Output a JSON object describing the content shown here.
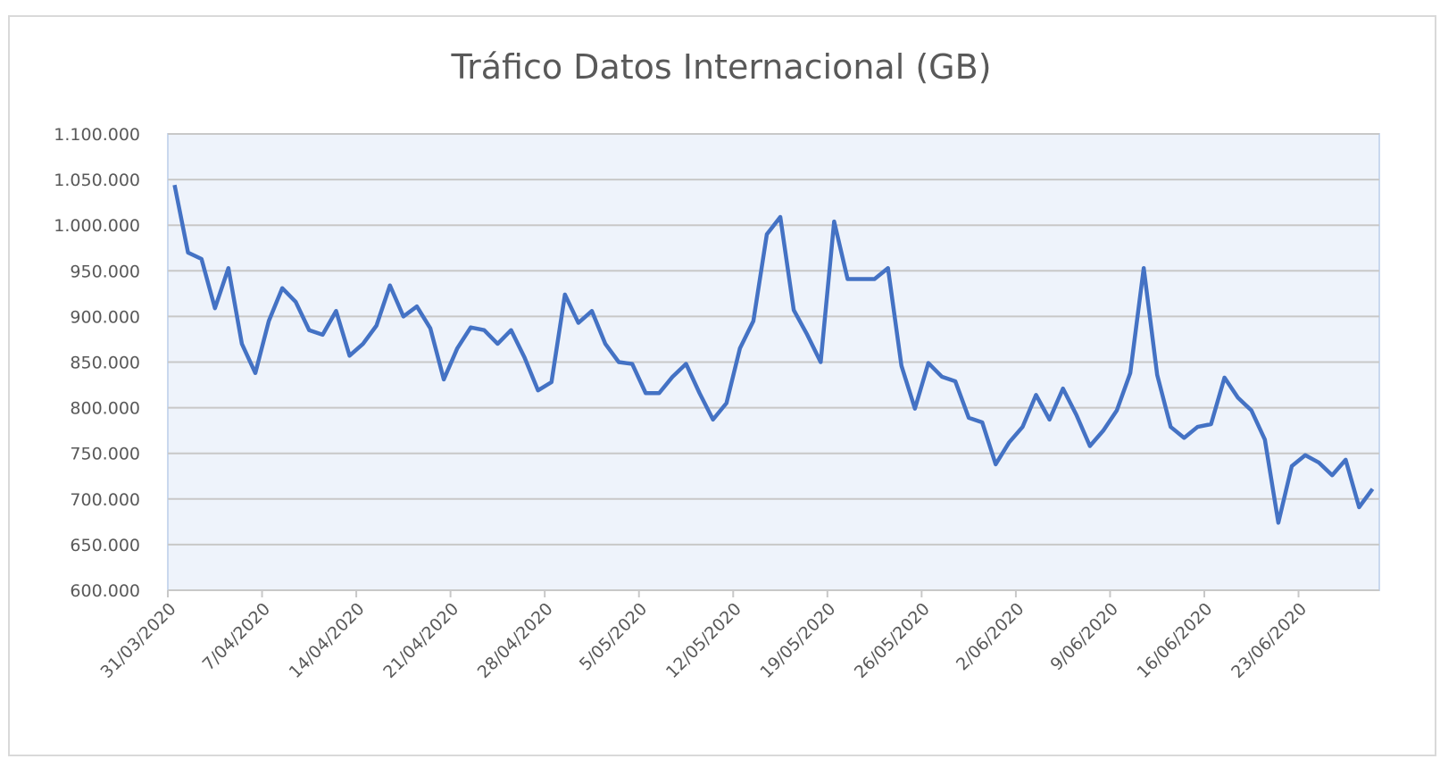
{
  "chart_data": {
    "type": "line",
    "title": "Tráfico Datos  Internacional (GB)",
    "categories": [
      "31/03/2020",
      null,
      null,
      null,
      null,
      null,
      null,
      "7/04/2020",
      null,
      null,
      null,
      null,
      null,
      null,
      "14/04/2020",
      null,
      null,
      null,
      null,
      null,
      null,
      "21/04/2020",
      null,
      null,
      null,
      null,
      null,
      null,
      "28/04/2020",
      null,
      null,
      null,
      null,
      null,
      null,
      "5/05/2020",
      null,
      null,
      null,
      null,
      null,
      null,
      "12/05/2020",
      null,
      null,
      null,
      null,
      null,
      null,
      "19/05/2020",
      null,
      null,
      null,
      null,
      null,
      null,
      "26/05/2020",
      null,
      null,
      null,
      null,
      null,
      null,
      "2/06/2020",
      null,
      null,
      null,
      null,
      null,
      null,
      "9/06/2020",
      null,
      null,
      null,
      null,
      null,
      null,
      "16/06/2020",
      null,
      null,
      null,
      null,
      null,
      null,
      "23/06/2020",
      null,
      null,
      null,
      null,
      null
    ],
    "values": [
      1044000,
      970000,
      963000,
      909000,
      953000,
      870000,
      838000,
      895000,
      931000,
      916000,
      885000,
      880000,
      906000,
      857000,
      870000,
      890000,
      934000,
      900000,
      911000,
      887000,
      831000,
      865000,
      888000,
      885000,
      870000,
      885000,
      855000,
      819000,
      828000,
      924000,
      893000,
      906000,
      870000,
      850000,
      848000,
      816000,
      816000,
      834000,
      848000,
      816000,
      787000,
      805000,
      865000,
      895000,
      990000,
      1009000,
      907000,
      880000,
      850000,
      1004000,
      941000,
      941000,
      941000,
      953000,
      846000,
      799000,
      849000,
      834000,
      829000,
      789000,
      784000,
      738000,
      762000,
      779000,
      814000,
      787000,
      821000,
      792000,
      758000,
      775000,
      797000,
      838000,
      953000,
      836000,
      779000,
      767000,
      779000,
      782000,
      833000,
      811000,
      797000,
      765000,
      674000,
      736000,
      748000,
      740000,
      726000,
      743000,
      691000,
      711000
    ],
    "color": "#4472c4",
    "ylim": [
      600000,
      1100000
    ],
    "yticks": [
      {
        "value": 600000,
        "label": "600.000"
      },
      {
        "value": 650000,
        "label": "650.000"
      },
      {
        "value": 700000,
        "label": "700.000"
      },
      {
        "value": 750000,
        "label": "750.000"
      },
      {
        "value": 800000,
        "label": "800.000"
      },
      {
        "value": 850000,
        "label": "850.000"
      },
      {
        "value": 900000,
        "label": "900.000"
      },
      {
        "value": 950000,
        "label": "950.000"
      },
      {
        "value": 1000000,
        "label": "1.000.000"
      },
      {
        "value": 1050000,
        "label": "1.050.000"
      },
      {
        "value": 1100000,
        "label": "1.100.000"
      }
    ],
    "grid": true
  }
}
